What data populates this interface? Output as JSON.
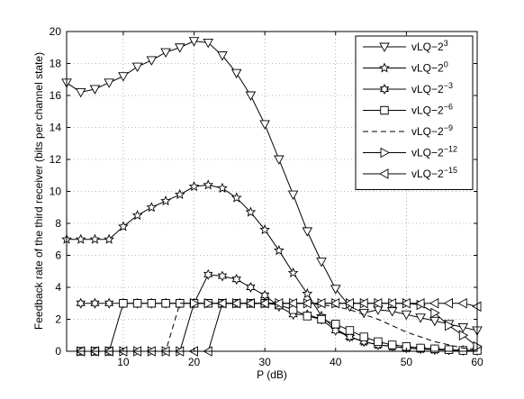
{
  "chart_data": {
    "type": "line",
    "title": "",
    "xlabel": "P (dB)",
    "ylabel": "Feedback rate of the third receiver (bits per channel state)",
    "xlim": [
      2,
      60
    ],
    "ylim": [
      0,
      20
    ],
    "xticks": [
      "10",
      "20",
      "30",
      "40",
      "50",
      "60"
    ],
    "yticks": [
      "0",
      "2",
      "4",
      "6",
      "8",
      "10",
      "12",
      "14",
      "16",
      "18",
      "20"
    ],
    "grid": true,
    "legend_position": "top-right",
    "series": [
      {
        "name_base": "vLQ−2",
        "name_exp": "3",
        "marker": "triangle-down",
        "line": "solid",
        "x": [
          2,
          4,
          6,
          8,
          10,
          12,
          14,
          16,
          18,
          20,
          22,
          24,
          26,
          28,
          30,
          32,
          34,
          36,
          38,
          40,
          42,
          44,
          46,
          48,
          50,
          52,
          54,
          56,
          58,
          60
        ],
        "y": [
          16.8,
          16.2,
          16.4,
          16.8,
          17.2,
          17.8,
          18.2,
          18.7,
          19.0,
          19.4,
          19.3,
          18.5,
          17.4,
          16.0,
          14.2,
          12.0,
          9.8,
          7.5,
          5.6,
          3.9,
          2.8,
          2.4,
          2.6,
          2.5,
          2.3,
          2.1,
          1.9,
          1.7,
          1.5,
          1.3
        ]
      },
      {
        "name_base": "vLQ−2",
        "name_exp": "0",
        "marker": "star5",
        "line": "solid",
        "x": [
          2,
          4,
          6,
          8,
          10,
          12,
          14,
          16,
          18,
          20,
          22,
          24,
          26,
          28,
          30,
          32,
          34,
          36,
          38,
          40,
          42,
          44,
          46,
          48,
          50,
          52,
          54,
          56,
          58,
          60
        ],
        "y": [
          7.0,
          7.0,
          7.0,
          7.0,
          7.8,
          8.5,
          9.0,
          9.4,
          9.8,
          10.3,
          10.4,
          10.2,
          9.6,
          8.7,
          7.6,
          6.3,
          4.9,
          3.6,
          2.2,
          1.4,
          0.9,
          0.6,
          0.4,
          0.3,
          0.2,
          0.15,
          0.1,
          0.1,
          0.05,
          0.05
        ]
      },
      {
        "name_base": "vLQ−2",
        "name_exp": "−3",
        "marker": "star6",
        "line": "solid",
        "x": [
          4,
          6,
          8,
          10,
          12,
          14,
          16,
          18,
          20,
          22,
          24,
          26,
          28,
          30,
          32,
          34,
          36,
          38,
          40,
          42,
          44,
          46,
          48,
          50,
          52,
          54,
          56,
          58,
          60
        ],
        "y": [
          3,
          3,
          3,
          3,
          3,
          3,
          3,
          3,
          3,
          4.8,
          4.7,
          4.5,
          4.0,
          3.5,
          2.8,
          2.3,
          2.3,
          2.0,
          1.3,
          0.9,
          0.6,
          0.4,
          0.3,
          0.2,
          0.15,
          0.1,
          0.08,
          0.05,
          0.05
        ]
      },
      {
        "name_base": "vLQ−2",
        "name_exp": "−6",
        "marker": "square",
        "line": "solid",
        "x": [
          4,
          6,
          8,
          10,
          12,
          14,
          16,
          18,
          20,
          22,
          24,
          26,
          28,
          30,
          32,
          34,
          36,
          38,
          40,
          42,
          44,
          46,
          48,
          50,
          52,
          54,
          56,
          58,
          60
        ],
        "y": [
          0,
          0,
          0,
          3,
          3,
          3,
          3,
          3,
          3,
          3,
          3,
          3,
          3,
          3,
          2.9,
          2.6,
          2.2,
          2.0,
          1.7,
          1.3,
          0.9,
          0.6,
          0.4,
          0.3,
          0.2,
          0.15,
          0.1,
          0.05,
          0.05
        ]
      },
      {
        "name_base": "vLQ−2",
        "name_exp": "−9",
        "marker": "none",
        "line": "dashed",
        "x": [
          4,
          6,
          8,
          10,
          12,
          14,
          16,
          18,
          20,
          22,
          24,
          26,
          28,
          30,
          32,
          34,
          36,
          38,
          40,
          42,
          44,
          46,
          48,
          50,
          52,
          54,
          56,
          58,
          60
        ],
        "y": [
          0,
          0,
          0,
          0,
          0,
          0,
          0,
          3,
          3,
          3,
          3,
          3,
          3,
          3,
          3,
          3,
          3,
          2.9,
          2.8,
          2.6,
          2.3,
          2.0,
          1.6,
          1.2,
          0.9,
          0.6,
          0.4,
          0.2,
          0.1
        ]
      },
      {
        "name_base": "vLQ−2",
        "name_exp": "−12",
        "marker": "triangle-right",
        "line": "solid",
        "x": [
          4,
          6,
          8,
          10,
          12,
          14,
          16,
          18,
          20,
          22,
          24,
          26,
          28,
          30,
          32,
          34,
          36,
          38,
          40,
          42,
          44,
          46,
          48,
          50,
          52,
          54,
          56,
          58,
          60
        ],
        "y": [
          0,
          0,
          0,
          0,
          0,
          0,
          0,
          0,
          3,
          3,
          3,
          3,
          3,
          3,
          3,
          3,
          3,
          3,
          3,
          3,
          3,
          3,
          3,
          3,
          2.9,
          2.4,
          1.6,
          1.0,
          0.3
        ]
      },
      {
        "name_base": "vLQ−2",
        "name_exp": "−15",
        "marker": "triangle-left",
        "line": "solid",
        "x": [
          4,
          6,
          8,
          10,
          12,
          14,
          16,
          18,
          20,
          22,
          24,
          26,
          28,
          30,
          32,
          34,
          36,
          38,
          40,
          42,
          44,
          46,
          48,
          50,
          52,
          54,
          56,
          58,
          60
        ],
        "y": [
          0,
          0,
          0,
          0,
          0,
          0,
          0,
          0,
          0,
          0,
          3,
          3,
          3,
          3,
          3,
          3,
          3,
          3,
          3,
          3,
          3,
          3,
          3,
          3,
          3,
          3,
          3,
          3,
          2.8
        ]
      }
    ]
  }
}
